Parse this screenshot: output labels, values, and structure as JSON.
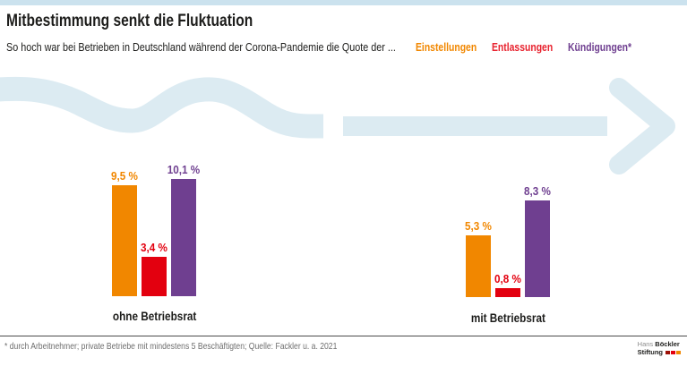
{
  "page": {
    "background": "#ffffff",
    "topbar_color": "#cbe2ee",
    "wave_color": "#dcebf2"
  },
  "header": {
    "title": "Mitbestimmung senkt die Fluktuation",
    "subtitle": "So hoch war bei Betrieben in Deutschland während der Corona-Pandemie die Quote der ...",
    "legend": [
      {
        "label": "Einstellungen",
        "color": "#f18700"
      },
      {
        "label": "Entlassungen",
        "color": "#e8232f"
      },
      {
        "label": "Kündigungen*",
        "color": "#6f3f90"
      }
    ]
  },
  "chart_data": {
    "type": "bar",
    "title": "Mitbestimmung senkt die Fluktuation",
    "subtitle": "So hoch war bei Betrieben in Deutschland während der Corona-Pandemie die Quote der ...",
    "unit": "%",
    "grid": false,
    "value_axis_visible": false,
    "ylim": [
      0,
      10.5
    ],
    "legend_position": "top-right",
    "series": [
      {
        "name": "Einstellungen",
        "color": "#f18700"
      },
      {
        "name": "Entlassungen",
        "color": "#e3000f"
      },
      {
        "name": "Kündigungen*",
        "color": "#6f3f90"
      }
    ],
    "categories": [
      "ohne Betriebsrat",
      "mit Betriebsrat"
    ],
    "groups": [
      {
        "category": "ohne Betriebsrat",
        "values": [
          9.5,
          3.4,
          10.1
        ],
        "labels": [
          "9,5 %",
          "3,4 %",
          "10,1 %"
        ]
      },
      {
        "category": "mit Betriebsrat",
        "values": [
          5.3,
          0.8,
          8.3
        ],
        "labels": [
          "5,3 %",
          "0,8 %",
          "8,3 %"
        ]
      }
    ]
  },
  "footer": {
    "note": "* durch Arbeitnehmer; private Betriebe mit mindestens 5 Beschäftigten; Quelle: Fackler u. a. 2021",
    "logo": {
      "name_light": "Hans",
      "name_bold": "Böckler",
      "line2_bold": "Stiftung",
      "block_colors": [
        "#9c1006",
        "#e3000f",
        "#f18700"
      ]
    }
  }
}
